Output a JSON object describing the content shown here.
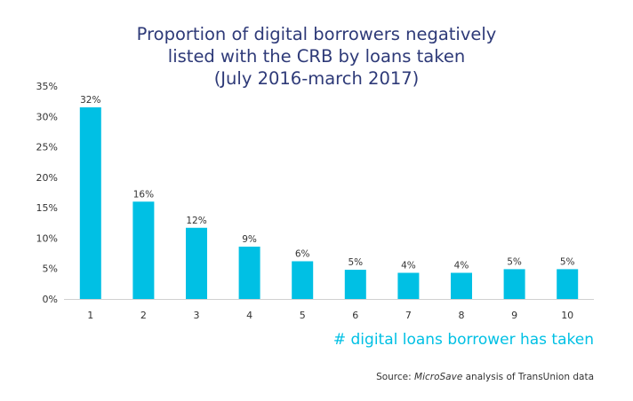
{
  "chart_data": {
    "type": "bar",
    "title_lines": [
      "Proportion of digital borrowers negatively",
      "listed with the CRB by loans taken",
      "(July 2016-march 2017)"
    ],
    "categories": [
      "1",
      "2",
      "3",
      "4",
      "5",
      "6",
      "7",
      "8",
      "9",
      "10"
    ],
    "values": [
      31.5,
      16,
      11.7,
      8.6,
      6.2,
      4.8,
      4.3,
      4.3,
      4.9,
      4.9
    ],
    "data_labels": [
      "32%",
      "16%",
      "12%",
      "9%",
      "6%",
      "5%",
      "4%",
      "4%",
      "5%",
      "5%"
    ],
    "y_ticks": [
      "0%",
      "5%",
      "10%",
      "15%",
      "20%",
      "25%",
      "30%",
      "35%"
    ],
    "ylim": [
      0,
      35
    ],
    "xlabel": "# digital loans borrower has taken",
    "ylabel": "",
    "grid": false,
    "legend": "none",
    "bar_color": "#00c0e4",
    "title_color": "#2e3a78"
  },
  "source": {
    "prefix": "Source: ",
    "emphasis": "MicroSave",
    "suffix": " analysis of TransUnion data"
  }
}
